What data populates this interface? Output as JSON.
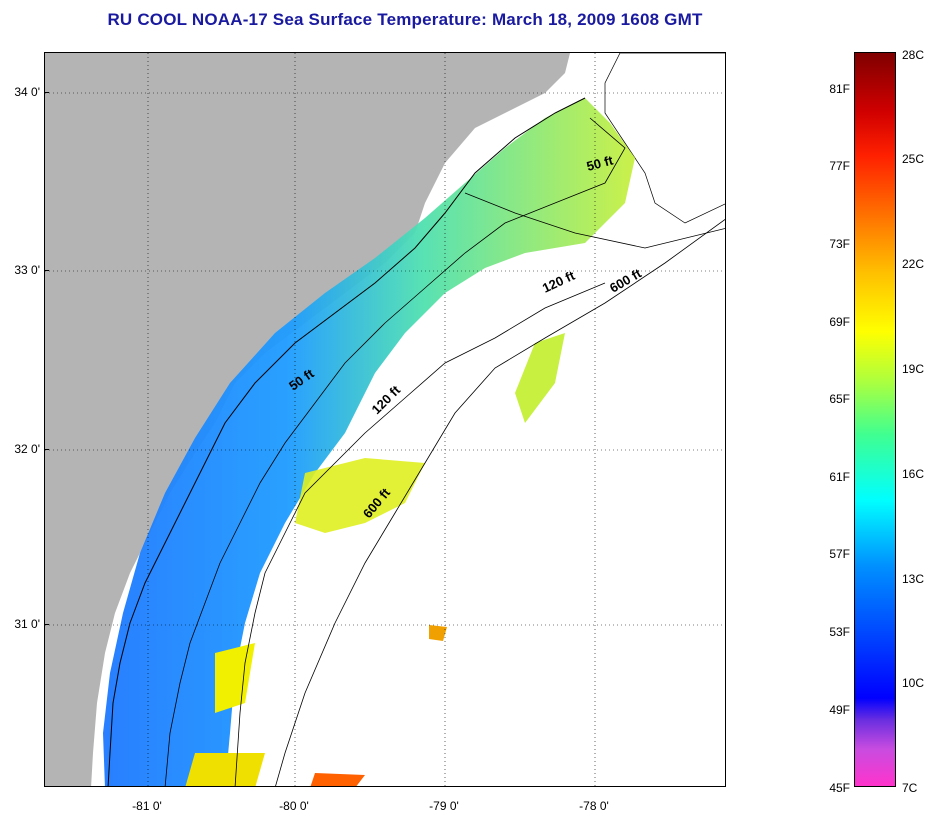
{
  "title": "RU COOL  NOAA-17  Sea Surface Temperature:  March 18, 2009 1608 GMT",
  "map": {
    "latitude_labels": [
      "34 0'",
      "33 0'",
      "32 0'",
      "31 0'"
    ],
    "longitude_labels": [
      "-81 0'",
      "-80 0'",
      "-79 0'",
      "-78 0'"
    ],
    "depth_contour_labels": [
      "50 ft",
      "120 ft",
      "600 ft",
      "50 ft",
      "120 ft",
      "600 ft"
    ],
    "colors": {
      "land": "#b4b4b4",
      "cloud_or_nodata": "#ffffff",
      "grid": "#000000"
    }
  },
  "colorbar": {
    "fahrenheit_labels": [
      "81F",
      "77F",
      "73F",
      "69F",
      "65F",
      "61F",
      "57F",
      "53F",
      "49F",
      "45F"
    ],
    "celsius_labels": [
      "28C",
      "25C",
      "22C",
      "19C",
      "16C",
      "13C",
      "10C",
      "7C"
    ],
    "range_c": [
      7,
      28
    ],
    "range_f": [
      45,
      82.4
    ]
  }
}
